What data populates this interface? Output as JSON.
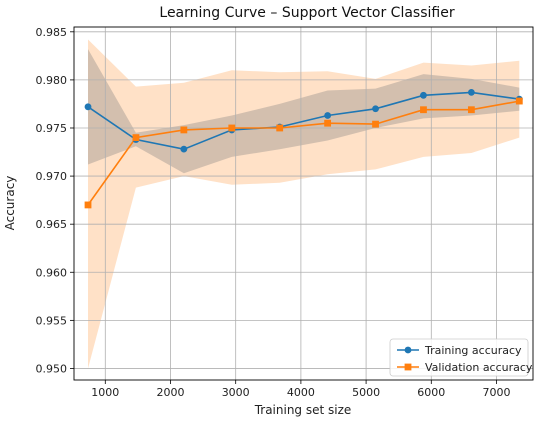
{
  "chart_data": {
    "type": "line",
    "title": "Learning Curve – Support Vector Classifier",
    "xlabel": "Training set size",
    "ylabel": "Accuracy",
    "xlim": [
      520,
      7560
    ],
    "ylim": [
      0.9488,
      0.9855
    ],
    "grid": true,
    "legend_position": "lower right",
    "x_ticks": [
      1000,
      2000,
      3000,
      4000,
      5000,
      6000,
      7000
    ],
    "y_ticks": [
      0.95,
      0.955,
      0.96,
      0.965,
      0.97,
      0.975,
      0.98,
      0.985
    ],
    "x": [
      735,
      1470,
      2205,
      2940,
      3675,
      4410,
      5145,
      5880,
      6615,
      7350
    ],
    "series": [
      {
        "name": "Training accuracy",
        "color": "#1f77b4",
        "marker": "circle",
        "values": [
          0.9772,
          0.9738,
          0.9728,
          0.9748,
          0.9751,
          0.9763,
          0.977,
          0.9784,
          0.9787,
          0.978
        ],
        "band_lower": [
          0.9712,
          0.9731,
          0.9703,
          0.972,
          0.9728,
          0.9737,
          0.975,
          0.976,
          0.9763,
          0.9768
        ],
        "band_upper": [
          0.9832,
          0.9745,
          0.9753,
          0.9763,
          0.9775,
          0.9789,
          0.9791,
          0.9806,
          0.9801,
          0.9792
        ],
        "band_color": "#808080"
      },
      {
        "name": "Validation accuracy",
        "color": "#ff7f0e",
        "marker": "square",
        "values": [
          0.967,
          0.974,
          0.9748,
          0.975,
          0.975,
          0.9755,
          0.9754,
          0.9769,
          0.9769,
          0.9778
        ],
        "band_lower": [
          0.95,
          0.9688,
          0.97,
          0.9691,
          0.9693,
          0.9702,
          0.9707,
          0.972,
          0.9724,
          0.974
        ],
        "band_upper": [
          0.9842,
          0.9793,
          0.9797,
          0.981,
          0.9808,
          0.9809,
          0.9801,
          0.9818,
          0.9815,
          0.982
        ],
        "band_color": "#ffdcbd"
      }
    ]
  }
}
